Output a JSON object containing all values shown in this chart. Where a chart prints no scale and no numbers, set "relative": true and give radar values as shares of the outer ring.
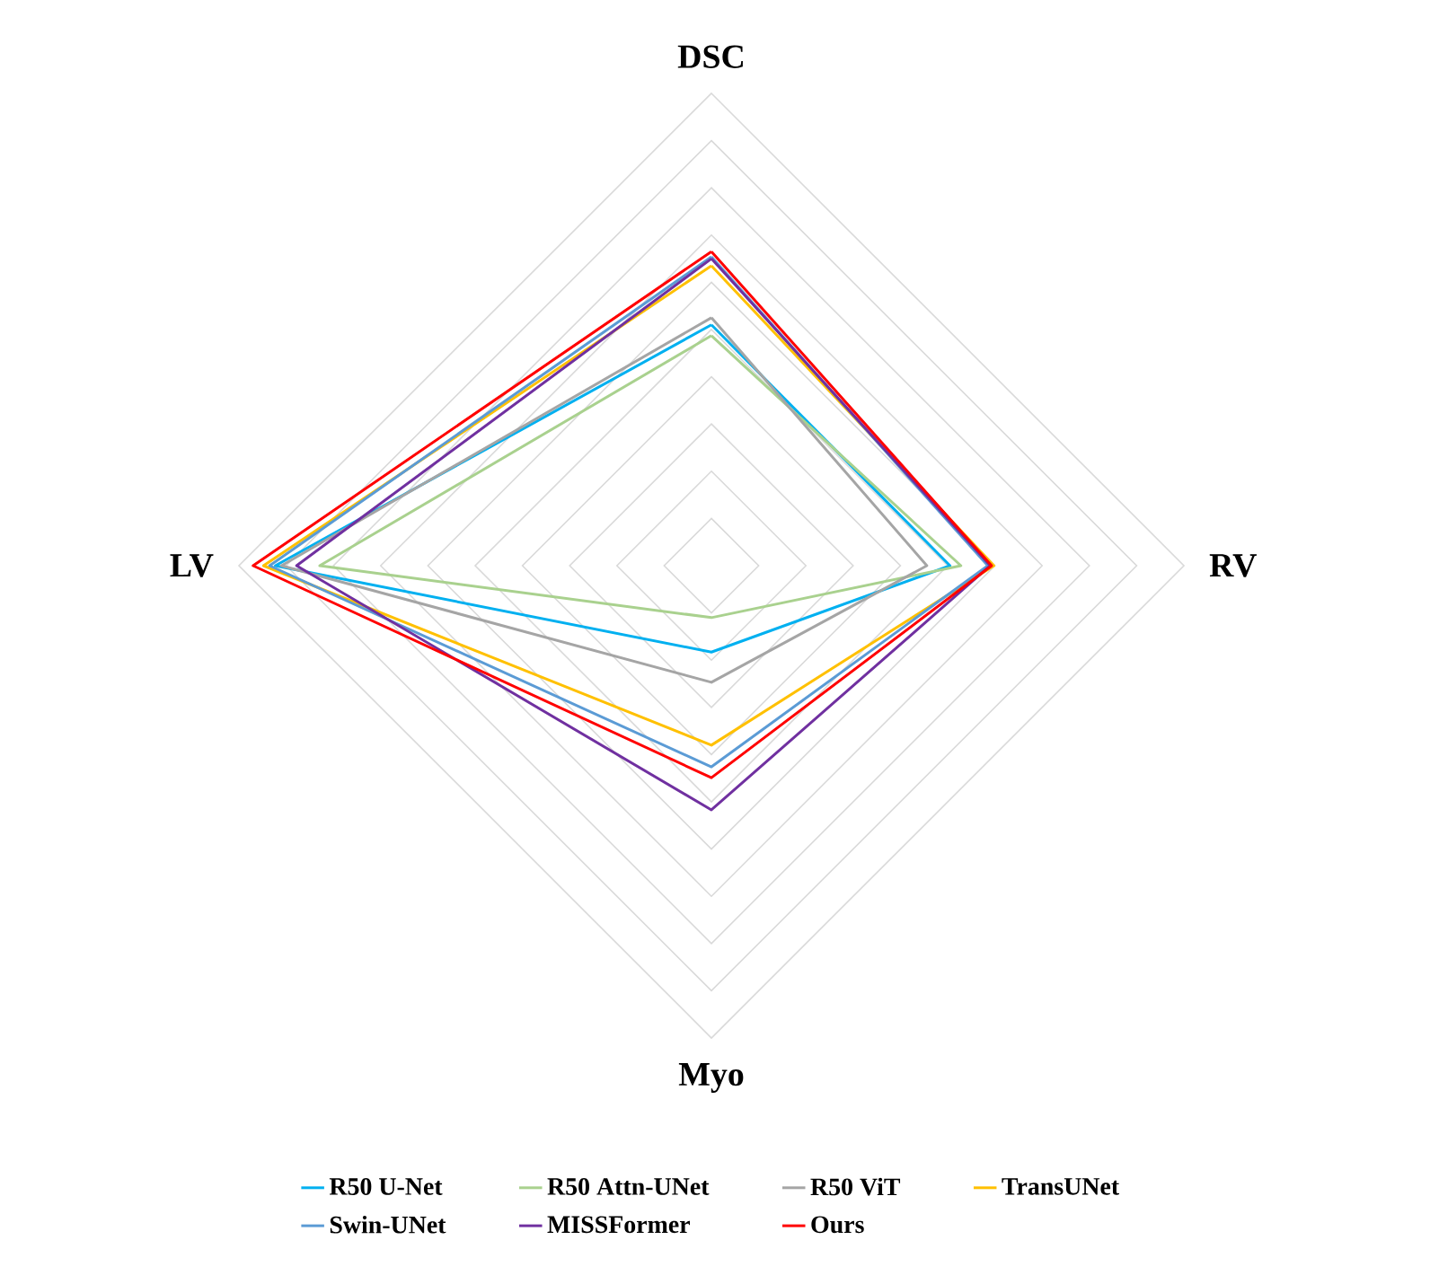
{
  "chart_data": {
    "type": "radar",
    "relative": true,
    "grid": true,
    "legend": "bottom",
    "marker": "none",
    "line_style": "solid",
    "categories": [
      "DSC",
      "RV",
      "Myo",
      "LV"
    ],
    "series": [
      {
        "name": "R50 U-Net",
        "color": "#00b0f0",
        "values": [
          0.51,
          0.505,
          0.183,
          0.923
        ]
      },
      {
        "name": "R50 Attn-UNet",
        "color": "#a9d18e",
        "values": [
          0.487,
          0.528,
          0.11,
          0.829
        ]
      },
      {
        "name": "R50 ViT",
        "color": "#a5a5a5",
        "values": [
          0.525,
          0.456,
          0.247,
          0.91
        ]
      },
      {
        "name": "TransUNet",
        "color": "#ffc000",
        "values": [
          0.635,
          0.598,
          0.38,
          0.948
        ]
      },
      {
        "name": "Swin-UNet",
        "color": "#5b9bd5",
        "values": [
          0.654,
          0.585,
          0.426,
          0.935
        ]
      },
      {
        "name": "MISSFormer",
        "color": "#7030a0",
        "values": [
          0.65,
          0.59,
          0.517,
          0.878
        ]
      },
      {
        "name": "Ours",
        "color": "#ff0000",
        "values": [
          0.665,
          0.593,
          0.449,
          0.97
        ]
      }
    ]
  }
}
